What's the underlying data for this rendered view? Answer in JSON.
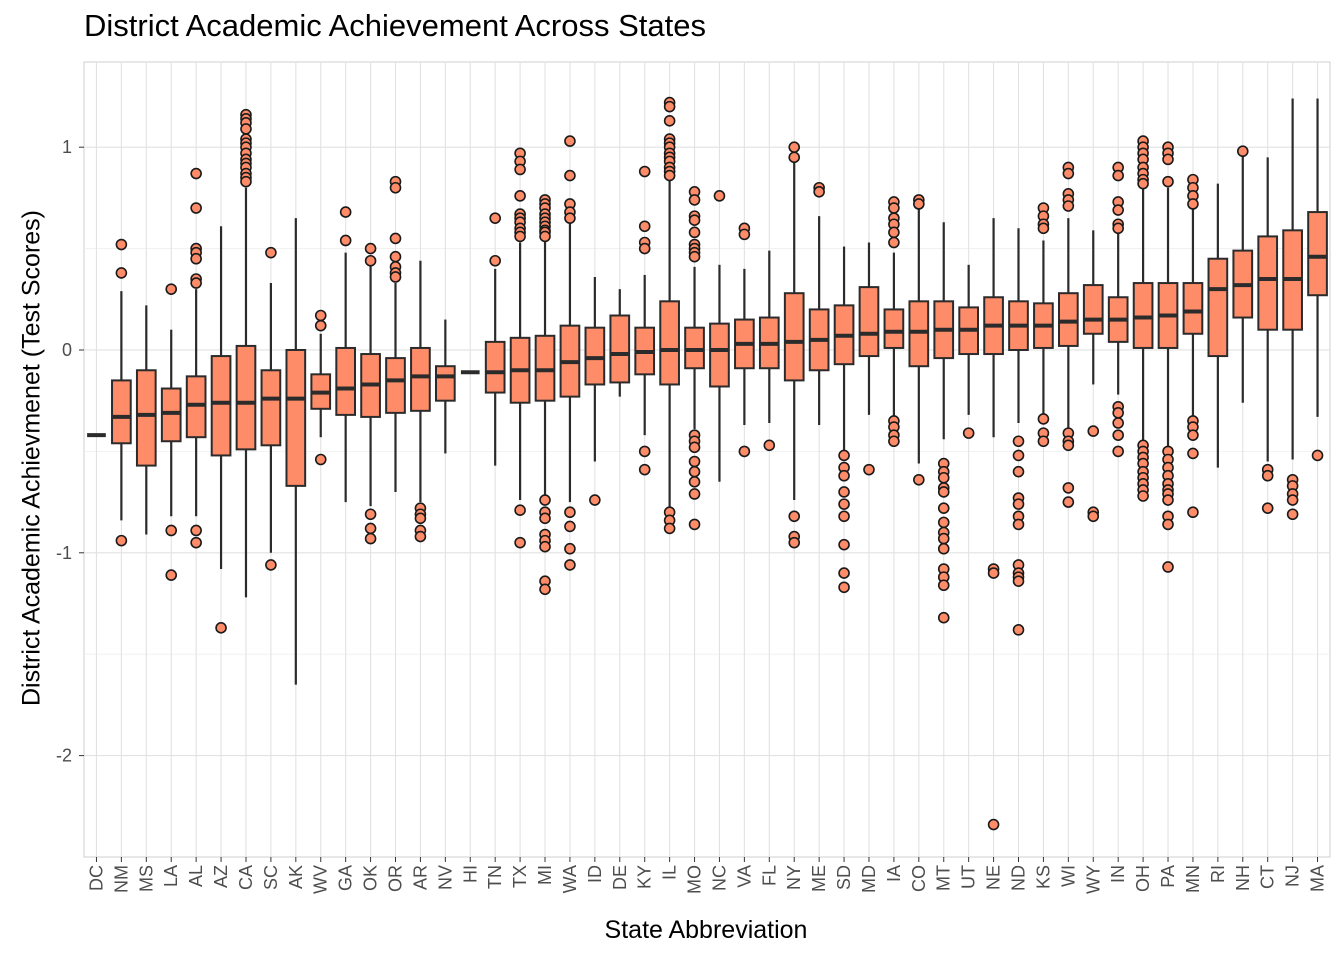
{
  "chart_data": {
    "type": "boxplot",
    "title": "District Academic Achievement Across States",
    "xlabel": "State Abbreviation",
    "ylabel": "District Academic Achievmenet (Test Scores)",
    "ylim": [
      -2.5,
      1.42
    ],
    "yticks": [
      -2,
      -1,
      0,
      1
    ],
    "grid": true,
    "box_fill": "#FF8C69",
    "box_stroke": "#2b2b2b",
    "grid_color": "#e2e2e2",
    "categories": [
      "DC",
      "NM",
      "MS",
      "LA",
      "AL",
      "AZ",
      "CA",
      "SC",
      "AK",
      "WV",
      "GA",
      "OK",
      "OR",
      "AR",
      "NV",
      "HI",
      "TN",
      "TX",
      "MI",
      "WA",
      "ID",
      "DE",
      "KY",
      "IL",
      "MO",
      "NC",
      "VA",
      "FL",
      "NY",
      "ME",
      "SD",
      "MD",
      "IA",
      "CO",
      "MT",
      "UT",
      "NE",
      "ND",
      "KS",
      "WI",
      "WY",
      "IN",
      "OH",
      "PA",
      "MN",
      "RI",
      "NH",
      "CT",
      "NJ",
      "MA"
    ],
    "boxes": [
      {
        "state": "DC",
        "wlo": -0.42,
        "q1": -0.42,
        "med": -0.42,
        "q3": -0.42,
        "whi": -0.42,
        "out": []
      },
      {
        "state": "NM",
        "wlo": -0.84,
        "q1": -0.46,
        "med": -0.33,
        "q3": -0.15,
        "whi": 0.29,
        "out": [
          0.52,
          0.38,
          -0.94
        ]
      },
      {
        "state": "MS",
        "wlo": -0.91,
        "q1": -0.57,
        "med": -0.32,
        "q3": -0.1,
        "whi": 0.22,
        "out": []
      },
      {
        "state": "LA",
        "wlo": -0.82,
        "q1": -0.45,
        "med": -0.31,
        "q3": -0.19,
        "whi": 0.1,
        "out": [
          0.3,
          -0.89,
          -1.11
        ]
      },
      {
        "state": "AL",
        "wlo": -0.82,
        "q1": -0.43,
        "med": -0.27,
        "q3": -0.13,
        "whi": 0.3,
        "out": [
          0.87,
          0.7,
          0.5,
          0.48,
          0.45,
          0.35,
          0.33,
          -0.89,
          -0.95
        ]
      },
      {
        "state": "AZ",
        "wlo": -1.08,
        "q1": -0.52,
        "med": -0.26,
        "q3": -0.03,
        "whi": 0.61,
        "out": [
          -1.37
        ]
      },
      {
        "state": "CA",
        "wlo": -1.22,
        "q1": -0.49,
        "med": -0.26,
        "q3": 0.02,
        "whi": 0.8,
        "out": [
          1.16,
          1.14,
          1.12,
          1.09,
          1.04,
          1.02,
          1.0,
          0.97,
          0.94,
          0.92,
          0.9,
          0.87,
          0.85,
          0.83
        ]
      },
      {
        "state": "SC",
        "wlo": -1.0,
        "q1": -0.47,
        "med": -0.24,
        "q3": -0.1,
        "whi": 0.33,
        "out": [
          0.48,
          -1.06
        ]
      },
      {
        "state": "AK",
        "wlo": -1.65,
        "q1": -0.67,
        "med": -0.24,
        "q3": 0.0,
        "whi": 0.65,
        "out": []
      },
      {
        "state": "WV",
        "wlo": -0.43,
        "q1": -0.29,
        "med": -0.21,
        "q3": -0.12,
        "whi": 0.08,
        "out": [
          0.17,
          0.12,
          -0.54
        ]
      },
      {
        "state": "GA",
        "wlo": -0.75,
        "q1": -0.32,
        "med": -0.19,
        "q3": 0.01,
        "whi": 0.48,
        "out": [
          0.68,
          0.54
        ]
      },
      {
        "state": "OK",
        "wlo": -0.77,
        "q1": -0.33,
        "med": -0.17,
        "q3": -0.02,
        "whi": 0.42,
        "out": [
          0.5,
          0.44,
          -0.81,
          -0.88,
          -0.93
        ]
      },
      {
        "state": "OR",
        "wlo": -0.7,
        "q1": -0.31,
        "med": -0.15,
        "q3": -0.04,
        "whi": 0.33,
        "out": [
          0.83,
          0.8,
          0.55,
          0.46,
          0.41,
          0.38,
          0.36
        ]
      },
      {
        "state": "AR",
        "wlo": -0.75,
        "q1": -0.3,
        "med": -0.13,
        "q3": 0.01,
        "whi": 0.44,
        "out": [
          -0.78,
          -0.81,
          -0.83,
          -0.89,
          -0.92
        ]
      },
      {
        "state": "NV",
        "wlo": -0.51,
        "q1": -0.25,
        "med": -0.13,
        "q3": -0.08,
        "whi": 0.15,
        "out": []
      },
      {
        "state": "HI",
        "wlo": -0.11,
        "q1": -0.11,
        "med": -0.11,
        "q3": -0.11,
        "whi": -0.11,
        "out": []
      },
      {
        "state": "TN",
        "wlo": -0.57,
        "q1": -0.21,
        "med": -0.11,
        "q3": 0.04,
        "whi": 0.4,
        "out": [
          0.65,
          0.44
        ]
      },
      {
        "state": "TX",
        "wlo": -0.74,
        "q1": -0.26,
        "med": -0.1,
        "q3": 0.06,
        "whi": 0.53,
        "out": [
          0.97,
          0.93,
          0.89,
          0.76,
          0.67,
          0.65,
          0.63,
          0.6,
          0.58,
          0.56,
          -0.79,
          -0.95
        ]
      },
      {
        "state": "MI",
        "wlo": -0.73,
        "q1": -0.25,
        "med": -0.1,
        "q3": 0.07,
        "whi": 0.55,
        "out": [
          0.74,
          0.72,
          0.7,
          0.67,
          0.65,
          0.63,
          0.61,
          0.59,
          0.58,
          0.56,
          -0.74,
          -0.8,
          -0.83,
          -0.91,
          -0.94,
          -0.97,
          -1.14,
          -1.18
        ]
      },
      {
        "state": "WA",
        "wlo": -0.75,
        "q1": -0.23,
        "med": -0.06,
        "q3": 0.12,
        "whi": 0.63,
        "out": [
          1.03,
          0.86,
          0.72,
          0.68,
          0.65,
          -0.8,
          -0.87,
          -0.98,
          -1.06
        ]
      },
      {
        "state": "ID",
        "wlo": -0.55,
        "q1": -0.17,
        "med": -0.04,
        "q3": 0.11,
        "whi": 0.36,
        "out": [
          -0.74
        ]
      },
      {
        "state": "DE",
        "wlo": -0.23,
        "q1": -0.16,
        "med": -0.02,
        "q3": 0.17,
        "whi": 0.3,
        "out": []
      },
      {
        "state": "KY",
        "wlo": -0.42,
        "q1": -0.12,
        "med": -0.01,
        "q3": 0.11,
        "whi": 0.37,
        "out": [
          0.88,
          0.61,
          0.53,
          0.5,
          -0.5,
          -0.59
        ]
      },
      {
        "state": "IL",
        "wlo": -0.79,
        "q1": -0.17,
        "med": 0.0,
        "q3": 0.24,
        "whi": 0.84,
        "out": [
          1.22,
          1.2,
          1.13,
          1.04,
          1.02,
          1.0,
          0.97,
          0.95,
          0.93,
          0.9,
          0.88,
          0.86,
          -0.8,
          -0.84,
          -0.88
        ]
      },
      {
        "state": "MO",
        "wlo": -0.39,
        "q1": -0.09,
        "med": 0.0,
        "q3": 0.11,
        "whi": 0.41,
        "out": [
          0.78,
          0.74,
          0.66,
          0.64,
          0.58,
          0.52,
          0.5,
          0.48,
          0.46,
          -0.42,
          -0.45,
          -0.48,
          -0.55,
          -0.6,
          -0.65,
          -0.71,
          -0.86
        ]
      },
      {
        "state": "NC",
        "wlo": -0.65,
        "q1": -0.18,
        "med": 0.0,
        "q3": 0.13,
        "whi": 0.42,
        "out": [
          0.76
        ]
      },
      {
        "state": "VA",
        "wlo": -0.37,
        "q1": -0.09,
        "med": 0.03,
        "q3": 0.15,
        "whi": 0.4,
        "out": [
          0.6,
          0.57,
          -0.5
        ]
      },
      {
        "state": "FL",
        "wlo": -0.36,
        "q1": -0.09,
        "med": 0.03,
        "q3": 0.16,
        "whi": 0.49,
        "out": [
          -0.47
        ]
      },
      {
        "state": "NY",
        "wlo": -0.74,
        "q1": -0.15,
        "med": 0.04,
        "q3": 0.28,
        "whi": 0.93,
        "out": [
          1.0,
          0.95,
          -0.82,
          -0.92,
          -0.95
        ]
      },
      {
        "state": "ME",
        "wlo": -0.37,
        "q1": -0.1,
        "med": 0.05,
        "q3": 0.2,
        "whi": 0.66,
        "out": [
          0.8,
          0.78
        ]
      },
      {
        "state": "SD",
        "wlo": -0.5,
        "q1": -0.07,
        "med": 0.07,
        "q3": 0.22,
        "whi": 0.51,
        "out": [
          -0.52,
          -0.58,
          -0.62,
          -0.7,
          -0.76,
          -0.82,
          -0.96,
          -1.1,
          -1.17
        ]
      },
      {
        "state": "MD",
        "wlo": -0.32,
        "q1": -0.03,
        "med": 0.08,
        "q3": 0.31,
        "whi": 0.53,
        "out": [
          -0.59
        ]
      },
      {
        "state": "IA",
        "wlo": -0.33,
        "q1": 0.01,
        "med": 0.09,
        "q3": 0.2,
        "whi": 0.48,
        "out": [
          0.73,
          0.7,
          0.65,
          0.62,
          0.58,
          0.53,
          -0.35,
          -0.38,
          -0.42,
          -0.45
        ]
      },
      {
        "state": "CO",
        "wlo": -0.56,
        "q1": -0.08,
        "med": 0.09,
        "q3": 0.24,
        "whi": 0.7,
        "out": [
          0.74,
          0.72,
          -0.64
        ]
      },
      {
        "state": "MT",
        "wlo": -0.44,
        "q1": -0.04,
        "med": 0.1,
        "q3": 0.24,
        "whi": 0.63,
        "out": [
          -0.56,
          -0.6,
          -0.63,
          -0.68,
          -0.7,
          -0.78,
          -0.85,
          -0.9,
          -0.93,
          -0.98,
          -1.08,
          -1.12,
          -1.16,
          -1.32
        ]
      },
      {
        "state": "UT",
        "wlo": -0.32,
        "q1": -0.02,
        "med": 0.1,
        "q3": 0.21,
        "whi": 0.42,
        "out": [
          -0.41
        ]
      },
      {
        "state": "NE",
        "wlo": -0.43,
        "q1": -0.02,
        "med": 0.12,
        "q3": 0.26,
        "whi": 0.65,
        "out": [
          -1.08,
          -1.1,
          -2.34
        ]
      },
      {
        "state": "ND",
        "wlo": -0.36,
        "q1": 0.0,
        "med": 0.12,
        "q3": 0.24,
        "whi": 0.6,
        "out": [
          -0.45,
          -0.52,
          -0.6,
          -0.73,
          -0.76,
          -0.82,
          -0.86,
          -1.06,
          -1.1,
          -1.12,
          -1.14,
          -1.38
        ]
      },
      {
        "state": "KS",
        "wlo": -0.32,
        "q1": 0.01,
        "med": 0.12,
        "q3": 0.23,
        "whi": 0.54,
        "out": [
          0.7,
          0.66,
          0.62,
          0.6,
          -0.34,
          -0.41,
          -0.45
        ]
      },
      {
        "state": "WI",
        "wlo": -0.39,
        "q1": 0.02,
        "med": 0.14,
        "q3": 0.28,
        "whi": 0.65,
        "out": [
          0.9,
          0.87,
          0.77,
          0.74,
          0.71,
          -0.41,
          -0.45,
          -0.47,
          -0.68,
          -0.75
        ]
      },
      {
        "state": "WY",
        "wlo": -0.17,
        "q1": 0.08,
        "med": 0.15,
        "q3": 0.32,
        "whi": 0.59,
        "out": [
          -0.4,
          -0.8,
          -0.82
        ]
      },
      {
        "state": "IN",
        "wlo": -0.22,
        "q1": 0.04,
        "med": 0.15,
        "q3": 0.26,
        "whi": 0.58,
        "out": [
          0.9,
          0.86,
          0.73,
          0.69,
          0.62,
          0.6,
          -0.28,
          -0.31,
          -0.36,
          -0.42,
          -0.5
        ]
      },
      {
        "state": "OH",
        "wlo": -0.45,
        "q1": 0.01,
        "med": 0.16,
        "q3": 0.33,
        "whi": 0.8,
        "out": [
          1.03,
          1.0,
          0.97,
          0.94,
          0.9,
          0.87,
          0.84,
          0.82,
          -0.47,
          -0.5,
          -0.53,
          -0.56,
          -0.6,
          -0.63,
          -0.66,
          -0.69,
          -0.72
        ]
      },
      {
        "state": "PA",
        "wlo": -0.48,
        "q1": 0.01,
        "med": 0.17,
        "q3": 0.33,
        "whi": 0.8,
        "out": [
          1.0,
          0.97,
          0.94,
          0.83,
          -0.5,
          -0.54,
          -0.58,
          -0.62,
          -0.66,
          -0.69,
          -0.71,
          -0.74,
          -0.82,
          -0.86,
          -1.07
        ]
      },
      {
        "state": "MN",
        "wlo": -0.34,
        "q1": 0.08,
        "med": 0.19,
        "q3": 0.33,
        "whi": 0.7,
        "out": [
          0.84,
          0.8,
          0.76,
          0.72,
          -0.35,
          -0.38,
          -0.42,
          -0.51,
          -0.8
        ]
      },
      {
        "state": "RI",
        "wlo": -0.58,
        "q1": -0.03,
        "med": 0.3,
        "q3": 0.45,
        "whi": 0.82,
        "out": []
      },
      {
        "state": "NH",
        "wlo": -0.26,
        "q1": 0.16,
        "med": 0.32,
        "q3": 0.49,
        "whi": 0.98,
        "out": [
          0.98
        ]
      },
      {
        "state": "CT",
        "wlo": -0.55,
        "q1": 0.1,
        "med": 0.35,
        "q3": 0.56,
        "whi": 0.95,
        "out": [
          -0.59,
          -0.62,
          -0.78
        ]
      },
      {
        "state": "NJ",
        "wlo": -0.54,
        "q1": 0.1,
        "med": 0.35,
        "q3": 0.59,
        "whi": 1.24,
        "out": [
          -0.64,
          -0.67,
          -0.71,
          -0.74,
          -0.81
        ]
      },
      {
        "state": "MA",
        "wlo": -0.33,
        "q1": 0.27,
        "med": 0.46,
        "q3": 0.68,
        "whi": 1.24,
        "out": [
          -0.52
        ]
      }
    ]
  }
}
